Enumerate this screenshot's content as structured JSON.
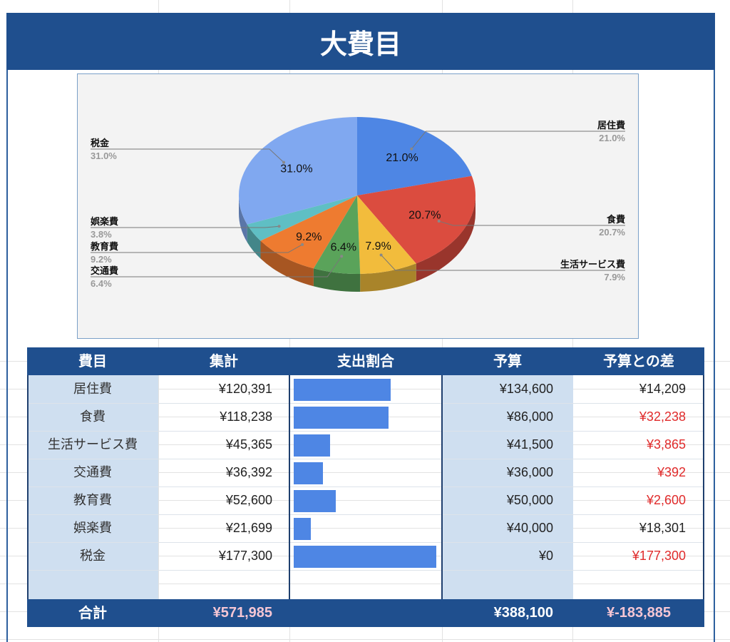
{
  "title": "大費目",
  "chart_data": {
    "type": "pie",
    "slices": [
      {
        "label": "居住費",
        "value": 21.0,
        "pct": "21.0%",
        "color": "#4e86e4"
      },
      {
        "label": "食費",
        "value": 20.7,
        "pct": "20.7%",
        "color": "#db4c3f"
      },
      {
        "label": "生活サービス費",
        "value": 7.9,
        "pct": "7.9%",
        "color": "#f2bc3c"
      },
      {
        "label": "交通費",
        "value": 6.4,
        "pct": "6.4%",
        "color": "#5aa35a"
      },
      {
        "label": "教育費",
        "value": 9.2,
        "pct": "9.2%",
        "color": "#ee7b30"
      },
      {
        "label": "娯楽費",
        "value": 3.8,
        "pct": "3.8%",
        "color": "#5fbfc4"
      },
      {
        "label": "税金",
        "value": 31.0,
        "pct": "31.0%",
        "color": "#80a8f0"
      }
    ],
    "legend": "side-labels"
  },
  "table": {
    "headers": [
      "費目",
      "集計",
      "支出割合",
      "予算",
      "予算との差"
    ],
    "rows": [
      {
        "category": "居住費",
        "total": "¥120,391",
        "ratio": 0.679,
        "budget": "¥134,600",
        "diff": "¥14,209",
        "negative": false
      },
      {
        "category": "食費",
        "total": "¥118,238",
        "ratio": 0.667,
        "budget": "¥86,000",
        "diff": "¥32,238",
        "negative": true
      },
      {
        "category": "生活サービス費",
        "total": "¥45,365",
        "ratio": 0.256,
        "budget": "¥41,500",
        "diff": "¥3,865",
        "negative": true
      },
      {
        "category": "交通費",
        "total": "¥36,392",
        "ratio": 0.205,
        "budget": "¥36,000",
        "diff": "¥392",
        "negative": true
      },
      {
        "category": "教育費",
        "total": "¥52,600",
        "ratio": 0.297,
        "budget": "¥50,000",
        "diff": "¥2,600",
        "negative": true
      },
      {
        "category": "娯楽費",
        "total": "¥21,699",
        "ratio": 0.122,
        "budget": "¥40,000",
        "diff": "¥18,301",
        "negative": false
      },
      {
        "category": "税金",
        "total": "¥177,300",
        "ratio": 1.0,
        "budget": "¥0",
        "diff": "¥177,300",
        "negative": true
      }
    ],
    "footer": {
      "label": "合計",
      "total": "¥571,985",
      "budget": "¥388,100",
      "diff": "¥-183,885"
    }
  }
}
